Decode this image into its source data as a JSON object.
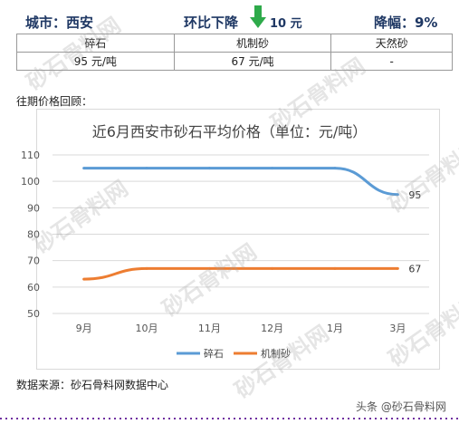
{
  "header": {
    "city": "城市：西安",
    "trend_label": "环比下降",
    "change_value": "10 元",
    "range_label": "降幅：9%",
    "arrow_color": "#2eaa4a"
  },
  "price_table": {
    "columns": [
      "碎石",
      "机制砂",
      "天然砂"
    ],
    "values": [
      "95 元/吨",
      "67 元/吨",
      "-"
    ]
  },
  "section_label": "往期价格回顾：",
  "chart_data": {
    "type": "line",
    "title": "近6月西安市砂石平均价格（单位：元/吨）",
    "categories": [
      "9月",
      "10月",
      "11月",
      "12月",
      "1月",
      "3月"
    ],
    "series": [
      {
        "name": "碎石",
        "values": [
          105,
          105,
          105,
          105,
          105,
          95
        ],
        "color": "#5b9bd5",
        "end_label": "95"
      },
      {
        "name": "机制砂",
        "values": [
          63,
          67,
          67,
          67,
          67,
          67
        ],
        "color": "#ed7d31",
        "end_label": "67"
      }
    ],
    "yticks": [
      "110",
      "100",
      "90",
      "80",
      "70",
      "60",
      "50"
    ],
    "ylim": [
      50,
      110
    ],
    "grid": true,
    "legend_position": "bottom"
  },
  "source": "数据来源：砂石骨料网数据中心",
  "credit": "头条 @砂石骨料网",
  "watermark": "砂石骨料网",
  "watermark_url": "www.cssglw.com"
}
